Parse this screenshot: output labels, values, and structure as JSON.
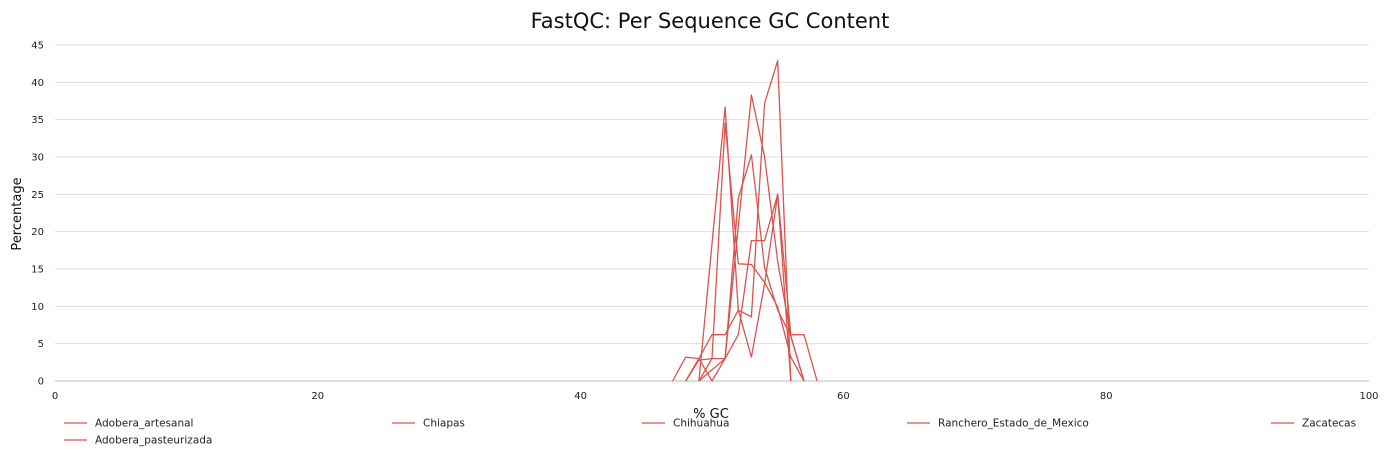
{
  "chart_data": {
    "type": "line",
    "title": "FastQC: Per Sequence GC Content",
    "xlabel": "% GC",
    "ylabel": "Percentage",
    "xlim": [
      0,
      100
    ],
    "ylim": [
      0,
      45
    ],
    "x_ticks": [
      0,
      20,
      40,
      60,
      80,
      100
    ],
    "y_ticks": [
      0,
      5,
      10,
      15,
      20,
      25,
      30,
      35,
      40,
      45
    ],
    "grid": "horizontal",
    "legend_position": "bottom",
    "series_color": "#d9534f",
    "series": [
      {
        "name": "Adobera_artesanal",
        "x": [
          49,
          51,
          53,
          54,
          55,
          56,
          57
        ],
        "y": [
          0,
          3,
          38.3,
          30,
          16,
          6,
          0
        ]
      },
      {
        "name": "Adobera_pasteurizada",
        "x": [
          48,
          49,
          50,
          51,
          52,
          53,
          54,
          55,
          56,
          57
        ],
        "y": [
          0,
          2.8,
          3,
          3,
          24.5,
          30.3,
          15.2,
          9.5,
          6,
          0
        ]
      },
      {
        "name": "Chiapas",
        "x": [
          49,
          51,
          52,
          53,
          54,
          55,
          56
        ],
        "y": [
          0,
          36.7,
          9.5,
          3.2,
          13,
          25,
          0
        ]
      },
      {
        "name": "Chihuahua",
        "x": [
          47,
          48,
          49,
          50,
          51,
          52,
          53,
          54,
          55,
          56,
          57,
          58
        ],
        "y": [
          0,
          3.2,
          3,
          0,
          3,
          6.2,
          18.8,
          18.8,
          25,
          6.2,
          6.2,
          0
        ]
      },
      {
        "name": "Ranchero_Estado_de_Mexico",
        "x": [
          49,
          50,
          51,
          52,
          53,
          54,
          55,
          56,
          57
        ],
        "y": [
          0,
          3,
          34.5,
          15.7,
          15.6,
          13.2,
          9.9,
          3.2,
          0
        ]
      },
      {
        "name": "Zacatecas",
        "x": [
          48,
          49,
          50,
          51,
          52,
          53,
          54,
          55,
          56
        ],
        "y": [
          0,
          3,
          6.2,
          6.2,
          9.5,
          8.6,
          37.2,
          42.9,
          0
        ]
      }
    ]
  }
}
